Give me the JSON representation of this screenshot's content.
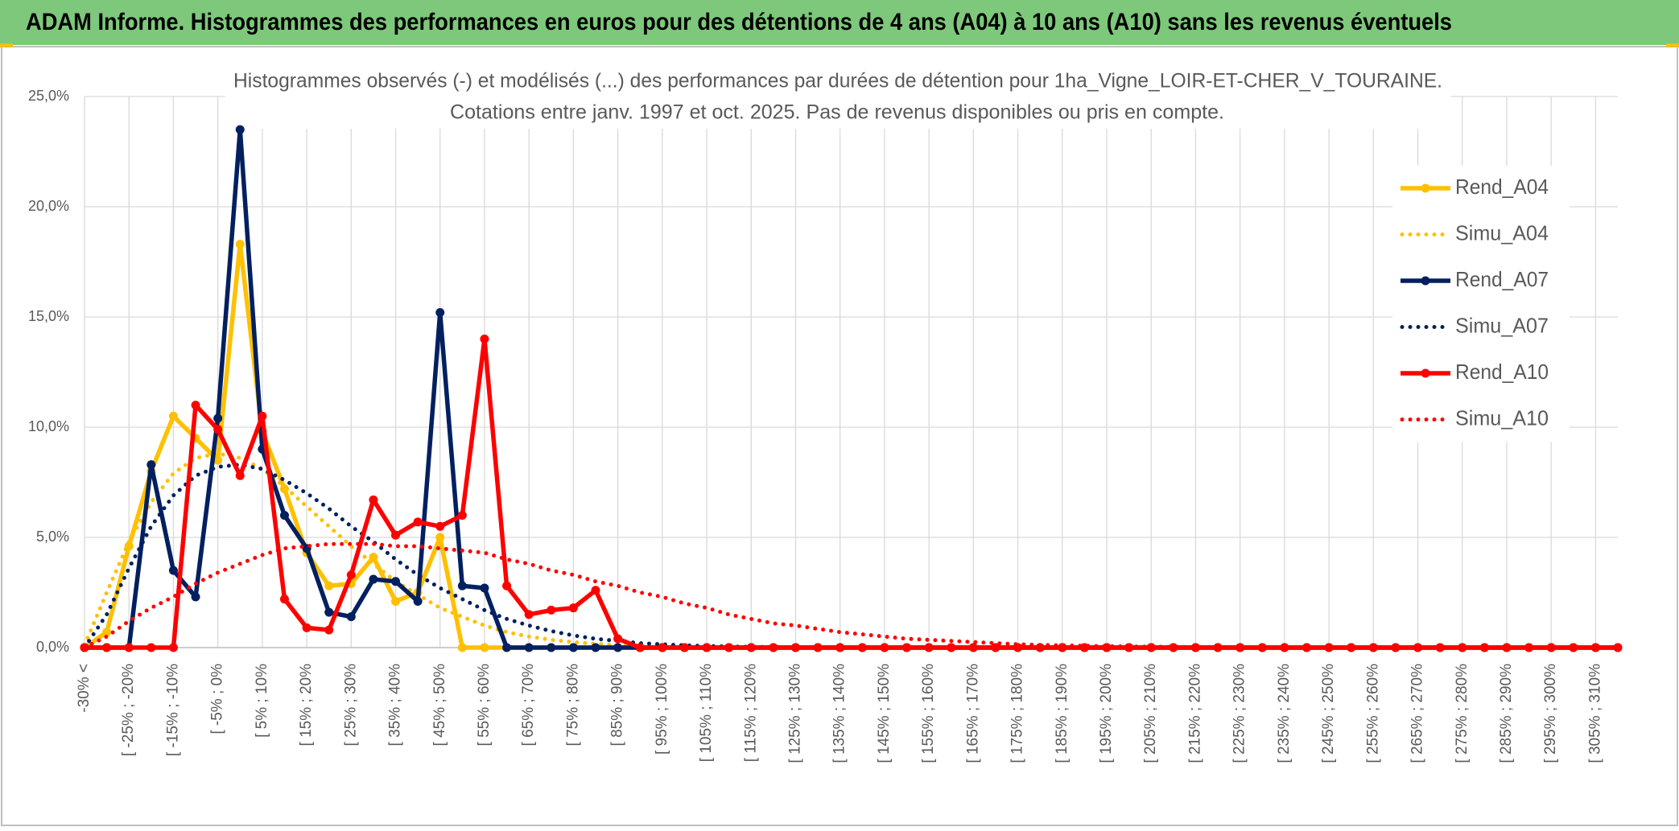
{
  "header": {
    "title": "ADAM Informe. Histogrammes des performances en euros pour des détentions de 4 ans (A04) à 10 ans (A10) sans les revenus éventuels"
  },
  "chart_data": {
    "type": "line",
    "title": "Histogrammes observés (-) et modélisés (...) des performances par durées de détention pour 1ha_Vigne_LOIR-ET-CHER_V_TOURAINE.",
    "subtitle": "Cotations entre janv. 1997 et oct. 2025. Pas de revenus disponibles ou pris en compte.",
    "categories": [
      "-30% <",
      null,
      "[ -25% ; -20%",
      null,
      "[ -15% ; -10%",
      null,
      "[ -5% ; 0%",
      null,
      "[ 5% ; 10%",
      null,
      "[ 15% ; 20%",
      null,
      "[ 25% ; 30%",
      null,
      "[ 35% ; 40%",
      null,
      "[ 45% ; 50%",
      null,
      "[ 55% ; 60%",
      null,
      "[ 65% ; 70%",
      null,
      "[ 75% ; 80%",
      null,
      "[ 85% ; 90%",
      null,
      "[ 95% ; 100%",
      null,
      "[ 105% ; 110%",
      null,
      "[ 115% ; 120%",
      null,
      "[ 125% ; 130%",
      null,
      "[ 135% ; 140%",
      null,
      "[ 145% ; 150%",
      null,
      "[ 155% ; 160%",
      null,
      "[ 165% ; 170%",
      null,
      "[ 175% ; 180%",
      null,
      "[ 185% ; 190%",
      null,
      "[ 195% ; 200%",
      null,
      "[ 205% ; 210%",
      null,
      "[ 215% ; 220%",
      null,
      "[ 225% ; 230%",
      null,
      "[ 235% ; 240%",
      null,
      "[ 245% ; 250%",
      null,
      "[ 255% ; 260%",
      null,
      "[ 265% ; 270%",
      null,
      "[ 275% ; 280%",
      null,
      "[ 285% ; 290%",
      null,
      "[ 295% ; 300%",
      null,
      "[ 305% ; 310%",
      null
    ],
    "ylim": [
      0,
      25
    ],
    "yticks": [
      {
        "value": 0,
        "label": "0,0%"
      },
      {
        "value": 5,
        "label": "5,0%"
      },
      {
        "value": 10,
        "label": "10,0%"
      },
      {
        "value": 15,
        "label": "15,0%"
      },
      {
        "value": 20,
        "label": "20,0%"
      },
      {
        "value": 25,
        "label": "25,0%"
      }
    ],
    "grid": true,
    "legend": "right",
    "series": [
      {
        "name": "Rend_A04",
        "color": "#FFC000",
        "dash": "solid",
        "marker": true,
        "values": [
          0,
          0.7,
          4.6,
          8,
          10.5,
          9.5,
          8.5,
          18.3,
          9.8,
          7.2,
          4.3,
          2.8,
          2.9,
          4.1,
          2.1,
          2.5,
          5,
          0,
          0,
          0,
          0,
          0,
          0,
          0,
          0,
          0,
          0,
          0,
          0,
          0,
          0,
          0,
          0,
          0,
          0,
          0,
          0,
          0,
          0,
          0,
          0,
          0,
          0,
          0,
          0,
          0,
          0,
          0,
          0,
          0,
          0,
          0,
          0,
          0,
          0,
          0,
          0,
          0,
          0,
          0,
          0,
          0,
          0,
          0,
          0,
          0,
          0,
          0,
          0,
          0
        ]
      },
      {
        "name": "Simu_A04",
        "color": "#FFC000",
        "dash": "dotted",
        "marker": false,
        "values": [
          0.1,
          2.5,
          4.8,
          6.6,
          7.9,
          8.6,
          8.8,
          8.6,
          8.1,
          7.3,
          6.4,
          5.5,
          4.6,
          3.8,
          3,
          2.4,
          1.8,
          1.4,
          1,
          0.7,
          0.5,
          0.35,
          0.25,
          0.17,
          0.1,
          0.07,
          0.05,
          0.03,
          0.02,
          0.01,
          0,
          0,
          0,
          0,
          0,
          0,
          0,
          0,
          0,
          0,
          0,
          0,
          0,
          0,
          0,
          0,
          0,
          0,
          0,
          0,
          0,
          0,
          0,
          0,
          0,
          0,
          0,
          0,
          0,
          0,
          0,
          0,
          0,
          0,
          0,
          0,
          0,
          0,
          0,
          0
        ]
      },
      {
        "name": "Rend_A07",
        "color": "#002060",
        "dash": "solid",
        "marker": true,
        "values": [
          0,
          0,
          0,
          8.3,
          3.5,
          2.3,
          10.4,
          23.5,
          9,
          6,
          4.5,
          1.6,
          1.4,
          3.1,
          3,
          2.1,
          15.2,
          2.8,
          2.7,
          0,
          0,
          0,
          0,
          0,
          0,
          0,
          0,
          0,
          0,
          0,
          0,
          0,
          0,
          0,
          0,
          0,
          0,
          0,
          0,
          0,
          0,
          0,
          0,
          0,
          0,
          0,
          0,
          0,
          0,
          0,
          0,
          0,
          0,
          0,
          0,
          0,
          0,
          0,
          0,
          0,
          0,
          0,
          0,
          0,
          0,
          0,
          0,
          0,
          0,
          0
        ]
      },
      {
        "name": "Simu_A07",
        "color": "#002060",
        "dash": "dotted",
        "marker": false,
        "values": [
          0,
          1.5,
          3.6,
          5.5,
          6.9,
          7.8,
          8.2,
          8.3,
          8.1,
          7.6,
          7,
          6.3,
          5.5,
          4.8,
          4,
          3.3,
          2.7,
          2.2,
          1.7,
          1.3,
          1,
          0.75,
          0.55,
          0.4,
          0.3,
          0.2,
          0.15,
          0.1,
          0.07,
          0.05,
          0.03,
          0.02,
          0.01,
          0,
          0,
          0,
          0,
          0,
          0,
          0,
          0,
          0,
          0,
          0,
          0,
          0,
          0,
          0,
          0,
          0,
          0,
          0,
          0,
          0,
          0,
          0,
          0,
          0,
          0,
          0,
          0,
          0,
          0,
          0,
          0,
          0,
          0,
          0,
          0,
          0
        ]
      },
      {
        "name": "Rend_A10",
        "color": "#FF0000",
        "dash": "solid",
        "marker": true,
        "values": [
          0,
          0,
          0,
          0,
          0,
          11,
          9.9,
          7.8,
          10.5,
          2.2,
          0.9,
          0.8,
          3.3,
          6.7,
          5.1,
          5.7,
          5.5,
          6,
          14,
          2.8,
          1.5,
          1.7,
          1.8,
          2.6,
          0.4,
          0,
          0,
          0,
          0,
          0,
          0,
          0,
          0,
          0,
          0,
          0,
          0,
          0,
          0,
          0,
          0,
          0,
          0,
          0,
          0,
          0,
          0,
          0,
          0,
          0,
          0,
          0,
          0,
          0,
          0,
          0,
          0,
          0,
          0,
          0,
          0,
          0,
          0,
          0,
          0,
          0,
          0,
          0,
          0,
          0
        ]
      },
      {
        "name": "Simu_A10",
        "color": "#FF0000",
        "dash": "dotted",
        "marker": false,
        "values": [
          0,
          0.5,
          1.2,
          1.8,
          2.3,
          2.9,
          3.4,
          3.8,
          4.2,
          4.5,
          4.6,
          4.7,
          4.7,
          4.7,
          4.6,
          4.6,
          4.5,
          4.4,
          4.3,
          4,
          3.8,
          3.5,
          3.3,
          3,
          2.8,
          2.5,
          2.3,
          2,
          1.8,
          1.5,
          1.3,
          1.1,
          1,
          0.85,
          0.7,
          0.6,
          0.5,
          0.4,
          0.35,
          0.3,
          0.25,
          0.2,
          0.15,
          0.12,
          0.1,
          0.08,
          0.06,
          0.05,
          0.04,
          0.03,
          0.02,
          0.02,
          0.01,
          0,
          0,
          0,
          0,
          0,
          0,
          0,
          0,
          0,
          0,
          0,
          0,
          0,
          0,
          0,
          0,
          0
        ]
      }
    ]
  }
}
